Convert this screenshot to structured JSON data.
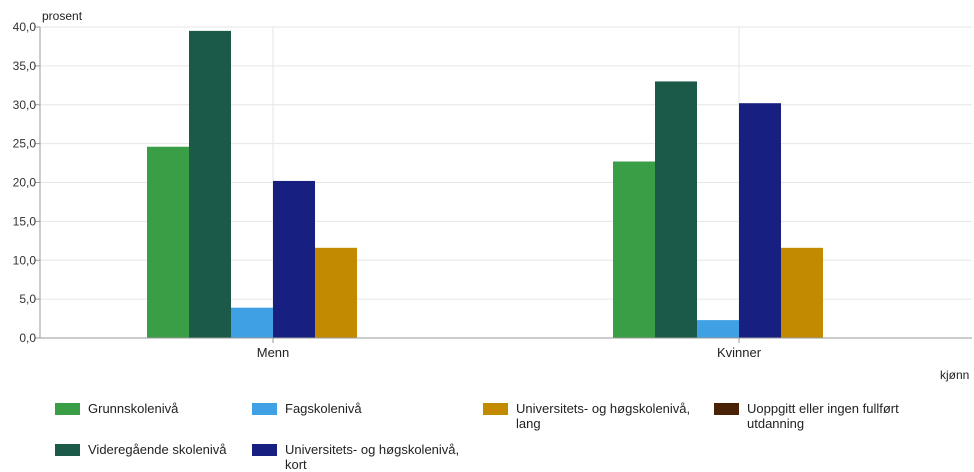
{
  "chart_data": {
    "type": "bar",
    "ylabel": "prosent",
    "xlabel": "kjønn",
    "ylim": [
      0,
      40
    ],
    "ytick_step": 5,
    "ytick_labels": [
      "0,0",
      "5,0",
      "10,0",
      "15,0",
      "20,0",
      "25,0",
      "30,0",
      "35,0",
      "40,0"
    ],
    "categories": [
      "Menn",
      "Kvinner"
    ],
    "grid": true,
    "legend_position": "bottom",
    "series": [
      {
        "name": "Grunnskolenivå",
        "color": "#3a9e47",
        "values": [
          24.6,
          22.7
        ]
      },
      {
        "name": "Videregående skolenivå",
        "color": "#1b5a48",
        "values": [
          39.5,
          33.0
        ]
      },
      {
        "name": "Fagskolenivå",
        "color": "#3fa0e3",
        "values": [
          3.9,
          2.3
        ]
      },
      {
        "name": "Universitets- og høgskolenivå, kort",
        "color": "#172080",
        "values": [
          20.2,
          30.2
        ]
      },
      {
        "name": "Universitets- og høgskolenivå, lang",
        "color": "#c28a00",
        "values": [
          11.6,
          11.6
        ]
      },
      {
        "name": "Uoppgitt eller ingen fullført utdanning",
        "color": "#4a2306",
        "values": [
          0,
          0
        ]
      }
    ]
  }
}
